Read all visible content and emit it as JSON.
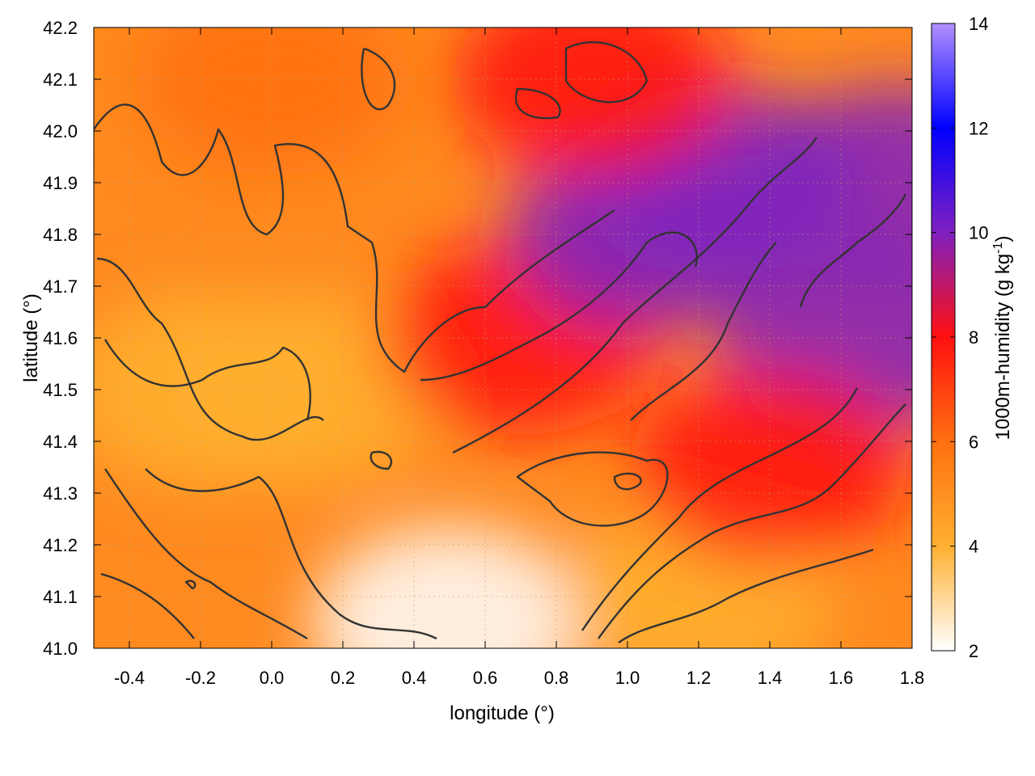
{
  "chart_data": {
    "type": "heatmap",
    "title": "",
    "xlabel": "longitude (°)",
    "ylabel": "latitude (°)",
    "xlim": [
      -0.5,
      1.8
    ],
    "ylim": [
      41.0,
      42.2
    ],
    "x_ticks": [
      "-0.4",
      "-0.2",
      "0.0",
      "0.2",
      "0.4",
      "0.6",
      "0.8",
      "1.0",
      "1.2",
      "1.4",
      "1.6",
      "1.8"
    ],
    "y_ticks": [
      "41.0",
      "41.1",
      "41.2",
      "41.3",
      "41.4",
      "41.5",
      "41.6",
      "41.7",
      "41.8",
      "41.9",
      "42.0",
      "42.1",
      "42.2"
    ],
    "grid": true,
    "colorbar": {
      "label_text": "1000m-humidity (g kg",
      "label_superscript": "-1",
      "label_close": ")",
      "range": [
        2,
        14
      ],
      "ticks": [
        "2",
        "4",
        "6",
        "8",
        "10",
        "12",
        "14"
      ],
      "colors": [
        "#ffffff",
        "#ffb030",
        "#ff7010",
        "#ff1010",
        "#8020c0",
        "#0000ff",
        "#b090ff"
      ]
    },
    "field_description_points": [
      {
        "lon": -0.2,
        "lat": 41.5,
        "value": 5.0
      },
      {
        "lon": 0.1,
        "lat": 41.5,
        "value": 5.0
      },
      {
        "lon": 0.5,
        "lat": 41.05,
        "value": 3.0
      },
      {
        "lon": 1.2,
        "lat": 41.1,
        "value": 4.0
      },
      {
        "lon": 0.7,
        "lat": 41.6,
        "value": 8.5
      },
      {
        "lon": 1.05,
        "lat": 41.8,
        "value": 9.5
      },
      {
        "lon": 1.25,
        "lat": 41.9,
        "value": 10.0
      },
      {
        "lon": 1.75,
        "lat": 41.9,
        "value": 11.0
      },
      {
        "lon": 1.65,
        "lat": 41.6,
        "value": 10.0
      },
      {
        "lon": 0.0,
        "lat": 42.1,
        "value": 6.5
      },
      {
        "lon": 0.9,
        "lat": 42.1,
        "value": 7.5
      },
      {
        "lon": 1.4,
        "lat": 41.35,
        "value": 8.0
      }
    ]
  }
}
